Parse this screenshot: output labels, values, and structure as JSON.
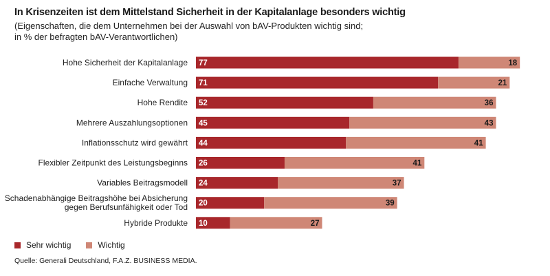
{
  "title": "In Krisenzeiten ist dem Mittelstand Sicherheit in der Kapitalanlage besonders wichtig",
  "subtitle_line1": "(Eigenschaften, die dem Unternehmen bei der Auswahl von bAV-Produkten wichtig sind;",
  "subtitle_line2": "in % der befragten bAV-Verantwortlichen)",
  "source": "Quelle: Generali Deutschland, F.A.Z. BUSINESS MEDIA.",
  "colors": {
    "sehr_wichtig": "#a8272b",
    "wichtig": "#cf8776"
  },
  "chart_data": {
    "type": "bar",
    "orientation": "horizontal",
    "stacked": true,
    "unit": "%",
    "categories": [
      [
        "Hohe Sicherheit der Kapitalanlage"
      ],
      [
        "Einfache Verwaltung"
      ],
      [
        "Hohe Rendite"
      ],
      [
        "Mehrere Auszahlungsoptionen"
      ],
      [
        "Inflationsschutz wird gewährt"
      ],
      [
        "Flexibler Zeitpunkt des Leistungsbeginns"
      ],
      [
        "Variables Beitragsmodell"
      ],
      [
        "Schadenabhängige Beitragshöhe bei Absicherung",
        "gegen Berufsunfähigkeit oder Tod"
      ],
      [
        "Hybride Produkte"
      ]
    ],
    "series": [
      {
        "name": "Sehr wichtig",
        "values": [
          77,
          71,
          52,
          45,
          44,
          26,
          24,
          20,
          10
        ]
      },
      {
        "name": "Wichtig",
        "values": [
          18,
          21,
          36,
          43,
          41,
          41,
          37,
          39,
          27
        ]
      }
    ],
    "xlim": [
      0,
      100
    ],
    "grid": false,
    "legend_position": "bottom-left"
  }
}
